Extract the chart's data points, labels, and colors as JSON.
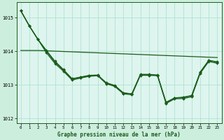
{
  "title": "Graphe pression niveau de la mer (hPa)",
  "background_color": "#cceedd",
  "plot_bg_color": "#ddf5ee",
  "grid_color": "#aaddcc",
  "line_color": "#1a5c1a",
  "xlim": [
    -0.5,
    23.5
  ],
  "ylim": [
    1011.85,
    1015.45
  ],
  "yticks": [
    1012,
    1013,
    1014,
    1015
  ],
  "xticks": [
    0,
    1,
    2,
    3,
    4,
    5,
    6,
    7,
    8,
    9,
    10,
    11,
    12,
    13,
    14,
    15,
    16,
    17,
    18,
    19,
    20,
    21,
    22,
    23
  ],
  "flat_line": [
    1014.02,
    1014.02,
    1014.02,
    1014.01,
    1014.0,
    1013.99,
    1013.98,
    1013.97,
    1013.96,
    1013.95,
    1013.94,
    1013.93,
    1013.92,
    1013.91,
    1013.9,
    1013.89,
    1013.88,
    1013.87,
    1013.86,
    1013.85,
    1013.84,
    1013.83,
    1013.82,
    1013.81
  ],
  "series1": [
    1015.2,
    1014.75,
    1014.35,
    1014.0,
    1013.67,
    1013.43,
    1013.17,
    1013.22,
    1013.27,
    1013.28,
    1013.05,
    1012.97,
    1012.75,
    1012.73,
    1013.3,
    1013.3,
    1013.28,
    1012.47,
    1012.6,
    1012.62,
    1012.67,
    1013.37,
    1013.72,
    1013.67
  ],
  "series2": [
    1015.2,
    1014.75,
    1014.35,
    1014.02,
    1013.7,
    1013.45,
    1013.18,
    1013.23,
    1013.28,
    1013.29,
    1013.06,
    1012.98,
    1012.76,
    1012.73,
    1013.31,
    1013.31,
    1013.29,
    1012.48,
    1012.61,
    1012.63,
    1012.68,
    1013.38,
    1013.73,
    1013.68
  ],
  "series3": [
    1015.2,
    1014.75,
    1014.35,
    1013.95,
    1013.63,
    1013.4,
    1013.14,
    1013.2,
    1013.25,
    1013.27,
    1013.03,
    1012.95,
    1012.73,
    1012.7,
    1013.28,
    1013.28,
    1013.27,
    1012.44,
    1012.58,
    1012.59,
    1012.64,
    1013.34,
    1013.69,
    1013.64
  ]
}
